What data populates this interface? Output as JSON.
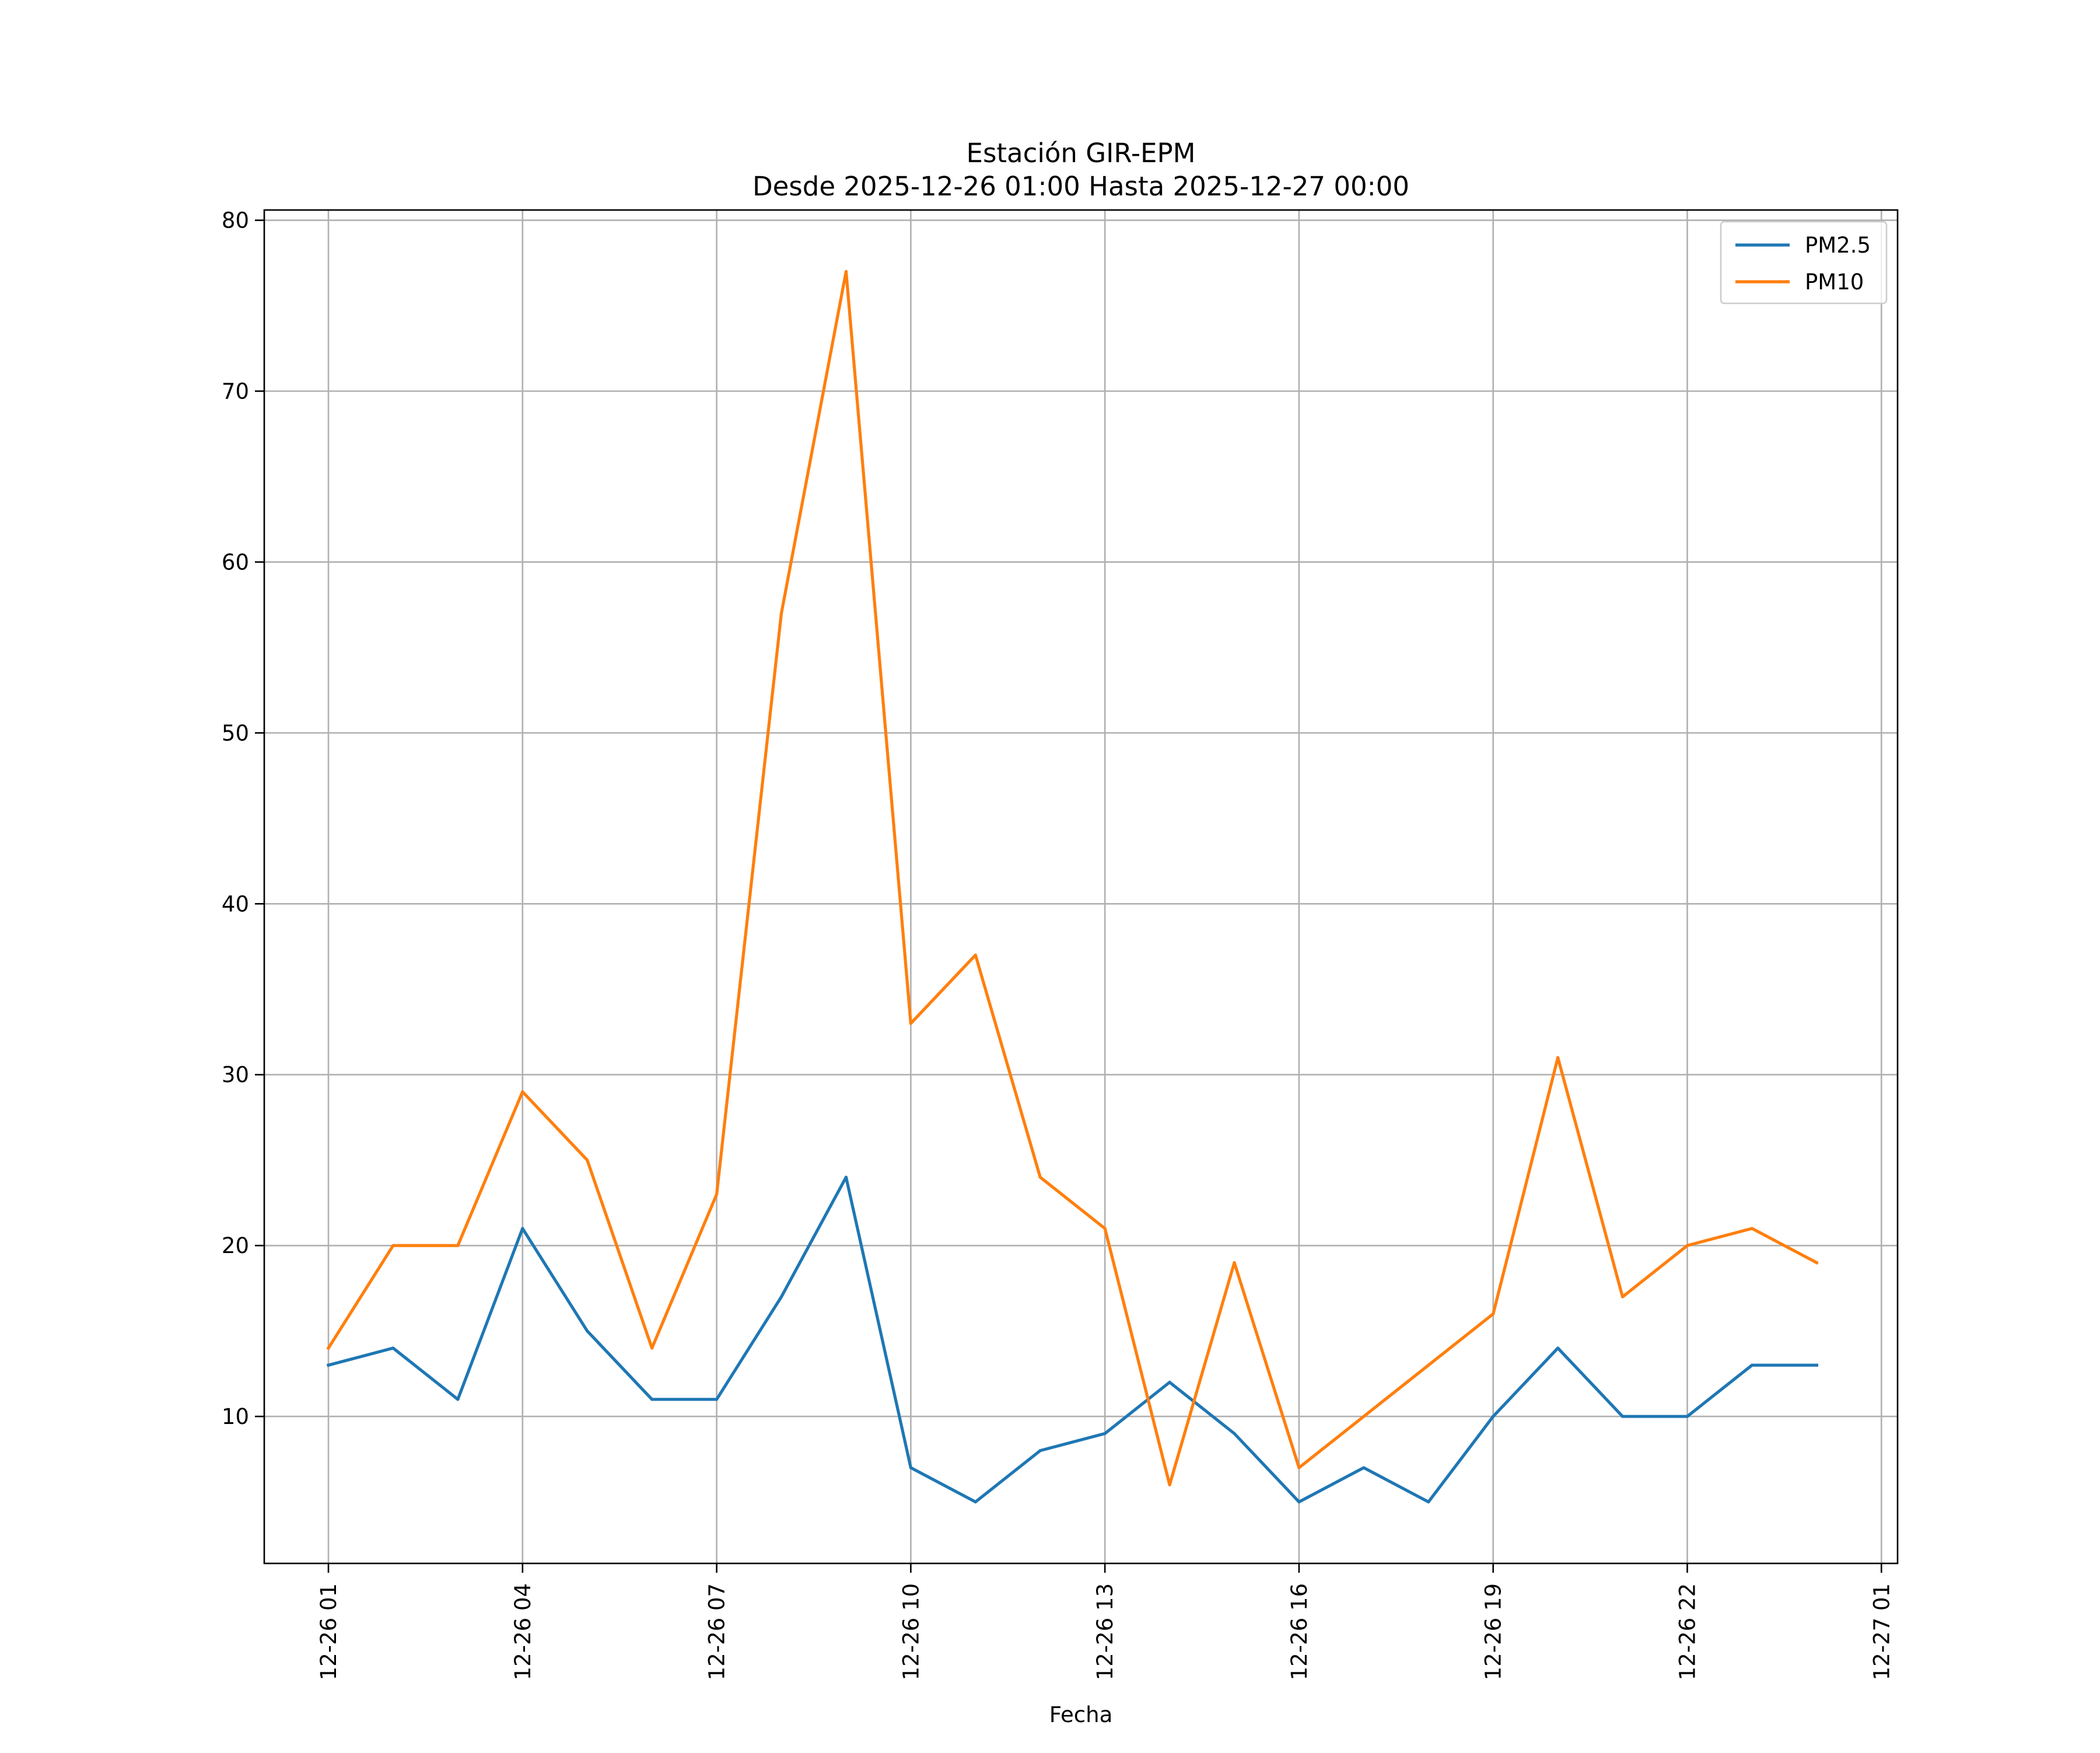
{
  "chart_data": {
    "type": "line",
    "title": "Estación GIR-EPM",
    "subtitle": "Desde 2025-12-26 01:00 Hasta 2025-12-27 00:00",
    "xlabel": "Fecha",
    "ylabel": "",
    "x": [
      "2025-12-26 01:00",
      "2025-12-26 02:00",
      "2025-12-26 03:00",
      "2025-12-26 04:00",
      "2025-12-26 05:00",
      "2025-12-26 06:00",
      "2025-12-26 07:00",
      "2025-12-26 08:00",
      "2025-12-26 09:00",
      "2025-12-26 10:00",
      "2025-12-26 11:00",
      "2025-12-26 12:00",
      "2025-12-26 13:00",
      "2025-12-26 14:00",
      "2025-12-26 15:00",
      "2025-12-26 16:00",
      "2025-12-26 17:00",
      "2025-12-26 18:00",
      "2025-12-26 19:00",
      "2025-12-26 20:00",
      "2025-12-26 21:00",
      "2025-12-26 22:00",
      "2025-12-26 23:00",
      "2025-12-27 00:00"
    ],
    "series": [
      {
        "name": "PM2.5",
        "color": "#1f77b4",
        "values": [
          13,
          14,
          11,
          21,
          15,
          11,
          11,
          17,
          24,
          7,
          5,
          8,
          9,
          12,
          9,
          5,
          7,
          5,
          10,
          14,
          10,
          10,
          13,
          13
        ]
      },
      {
        "name": "PM10",
        "color": "#ff7f0e",
        "values": [
          14,
          20,
          20,
          29,
          25,
          14,
          23,
          57,
          77,
          33,
          37,
          24,
          21,
          6,
          19,
          7,
          10,
          13,
          16,
          31,
          17,
          20,
          21,
          19
        ]
      }
    ],
    "xlim": [
      "2025-12-26 00:00:30",
      "2025-12-27 01:15"
    ],
    "ylim": [
      1.4,
      80.6
    ],
    "x_ticks": [
      {
        "value": "2025-12-26 01:00",
        "label": "12-26 01"
      },
      {
        "value": "2025-12-26 04:00",
        "label": "12-26 04"
      },
      {
        "value": "2025-12-26 07:00",
        "label": "12-26 07"
      },
      {
        "value": "2025-12-26 10:00",
        "label": "12-26 10"
      },
      {
        "value": "2025-12-26 13:00",
        "label": "12-26 13"
      },
      {
        "value": "2025-12-26 16:00",
        "label": "12-26 16"
      },
      {
        "value": "2025-12-26 19:00",
        "label": "12-26 19"
      },
      {
        "value": "2025-12-26 22:00",
        "label": "12-26 22"
      },
      {
        "value": "2025-12-27 01:00",
        "label": "12-27 01"
      }
    ],
    "y_ticks": [
      10,
      20,
      30,
      40,
      50,
      60,
      70,
      80
    ],
    "grid": true,
    "legend_position": "top-right"
  }
}
